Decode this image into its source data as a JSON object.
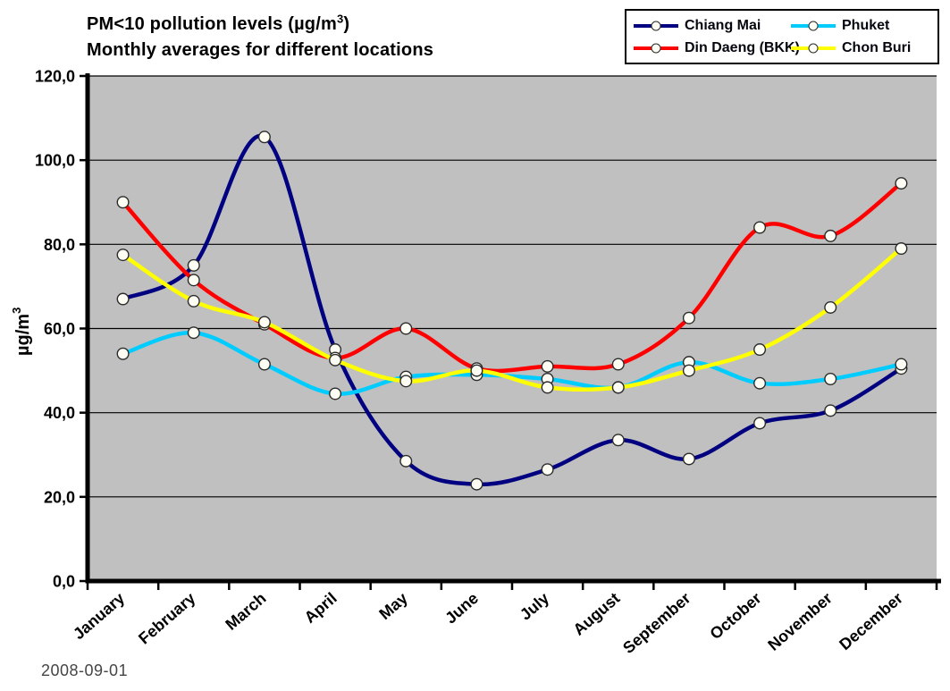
{
  "chart": {
    "title_line1_pre": "PM<10 pollution levels (µg/m",
    "title_sup": "3",
    "title_line1_post": ")",
    "title_line2": "Monthly averages for different locations",
    "y_axis_title_pre": "µg/m",
    "y_axis_title_sup": "3"
  },
  "legend": {
    "items": [
      {
        "label": "Chiang Mai",
        "color": "#000080"
      },
      {
        "label": "Phuket",
        "color": "#00CCFF"
      },
      {
        "label": "Din Daeng (BKK)",
        "color": "#FF0000"
      },
      {
        "label": "Chon Buri",
        "color": "#FFFF00"
      }
    ]
  },
  "footer": {
    "date": "2008-09-01"
  },
  "chart_data": {
    "type": "line",
    "title": "PM<10 pollution levels (µg/m³) — Monthly averages for different locations",
    "categories": [
      "January",
      "February",
      "March",
      "April",
      "May",
      "June",
      "July",
      "August",
      "September",
      "October",
      "November",
      "December"
    ],
    "series": [
      {
        "name": "Chiang Mai",
        "color": "#000080",
        "values": [
          67,
          75,
          105.5,
          55,
          28.5,
          23,
          26.5,
          33.5,
          29,
          37.5,
          40.5,
          50.5
        ]
      },
      {
        "name": "Din Daeng (BKK)",
        "color": "#FF0000",
        "values": [
          90,
          71.5,
          61,
          53,
          60,
          50.5,
          51,
          51.5,
          62.5,
          84,
          82,
          94.5
        ]
      },
      {
        "name": "Phuket",
        "color": "#00CCFF",
        "values": [
          54,
          59,
          51.5,
          44.5,
          48.5,
          49,
          48,
          46,
          52,
          47,
          48,
          51.5
        ]
      },
      {
        "name": "Chon Buri",
        "color": "#FFFF00",
        "values": [
          77.5,
          66.5,
          61.5,
          52.5,
          47.5,
          50,
          46,
          46,
          50,
          55,
          65,
          79
        ]
      }
    ],
    "xlabel": "",
    "ylabel": "µg/m³",
    "ylim": [
      0,
      120
    ],
    "ytick_step": 20,
    "ytick_labels": [
      "0,0",
      "20,0",
      "40,0",
      "60,0",
      "80,0",
      "100,0",
      "120,0"
    ],
    "grid": true,
    "line_smoothing": true,
    "marker_style": "white-circle",
    "legend_position": "top-right",
    "plot_background": "#C0C0C0"
  }
}
